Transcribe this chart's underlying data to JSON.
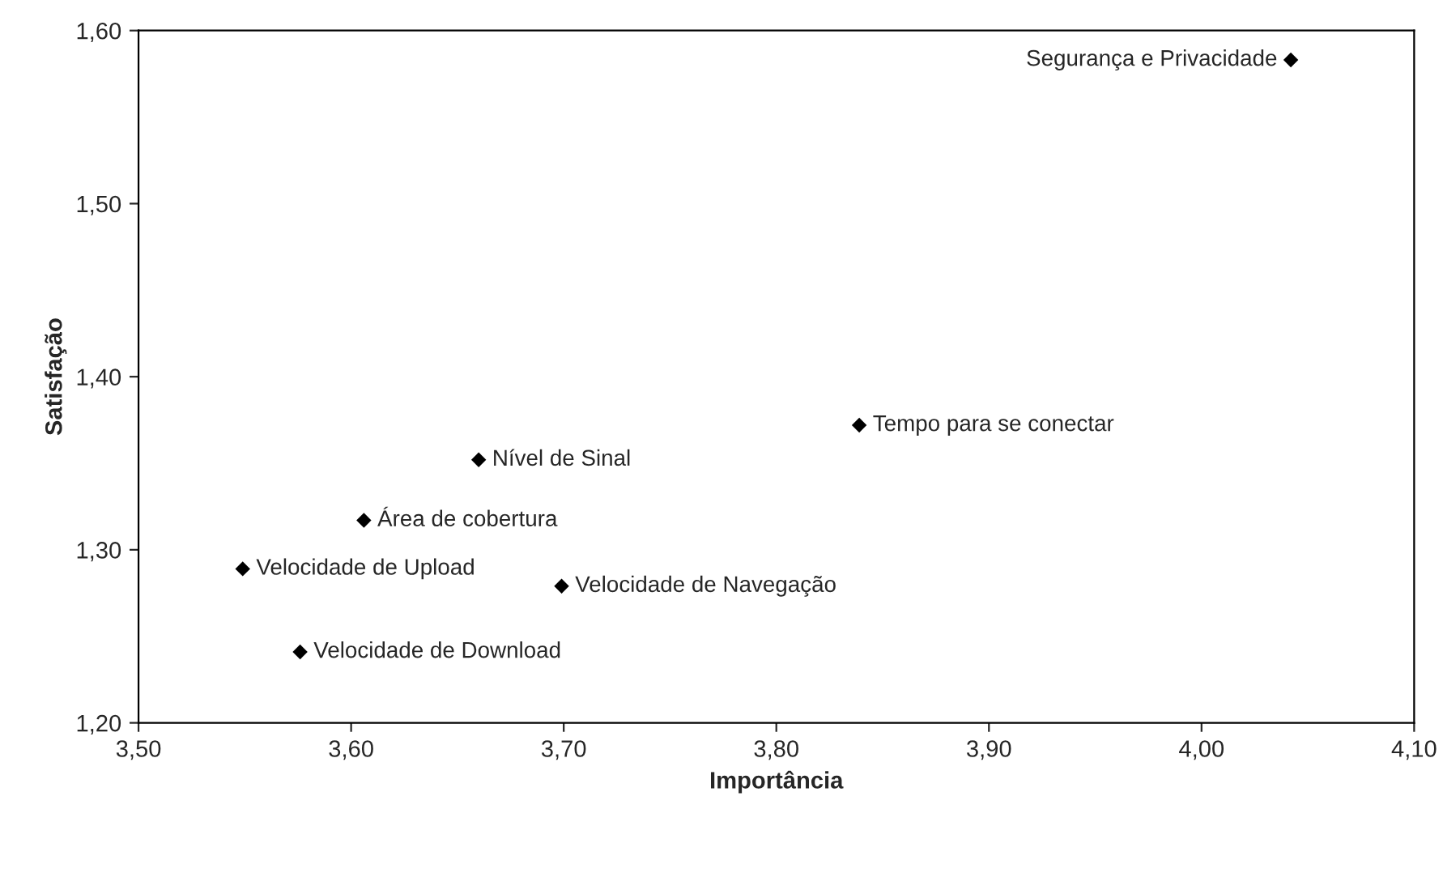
{
  "chart_data": {
    "type": "scatter",
    "xlabel": "Importância",
    "ylabel": "Satisfação",
    "x": [
      4.042,
      3.839,
      3.66,
      3.606,
      3.549,
      3.699,
      3.576
    ],
    "series": [
      {
        "color": "#000000",
        "values": [
          1.583,
          1.372,
          1.352,
          1.317,
          1.289,
          1.279,
          1.241
        ]
      }
    ],
    "annotations": [
      {
        "text": "Segurança e Privacidade",
        "x": 4.042,
        "y": 1.583
      },
      {
        "text": "Tempo para se conectar",
        "x": 3.839,
        "y": 1.372
      },
      {
        "text": "Nível de Sinal",
        "x": 3.66,
        "y": 1.352
      },
      {
        "text": "Área de cobertura",
        "x": 3.606,
        "y": 1.317
      },
      {
        "text": "Velocidade de Upload",
        "x": 3.549,
        "y": 1.289
      },
      {
        "text": "Velocidade de Navegação",
        "x": 3.699,
        "y": 1.279
      },
      {
        "text": "Velocidade de Download",
        "x": 3.576,
        "y": 1.241
      }
    ],
    "marker": "diamond",
    "grid": false,
    "legend": false,
    "xlim": [
      3.5,
      4.1
    ],
    "ylim": [
      1.2,
      1.6
    ],
    "xticks": [
      {
        "value": 3.5,
        "label": "3,50"
      },
      {
        "value": 3.6,
        "label": "3,60"
      },
      {
        "value": 3.7,
        "label": "3,70"
      },
      {
        "value": 3.8,
        "label": "3,80"
      },
      {
        "value": 3.9,
        "label": "3,90"
      },
      {
        "value": 4.0,
        "label": "4,00"
      },
      {
        "value": 4.1,
        "label": "4,10"
      }
    ],
    "yticks": [
      {
        "value": 1.2,
        "label": "1,20"
      },
      {
        "value": 1.3,
        "label": "1,30"
      },
      {
        "value": 1.4,
        "label": "1,40"
      },
      {
        "value": 1.5,
        "label": "1,50"
      },
      {
        "value": 1.6,
        "label": "1,60"
      }
    ]
  }
}
